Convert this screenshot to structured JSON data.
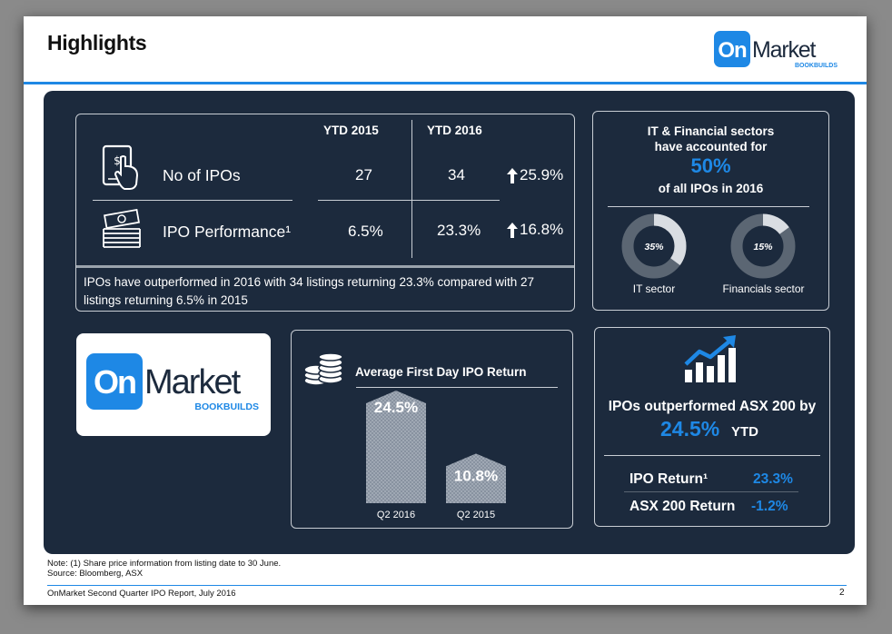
{
  "title": "Highlights",
  "logo": {
    "on": "On",
    "market": "Market",
    "sub": "BOOKBUILDS"
  },
  "stats": {
    "col1": "YTD 2015",
    "col2": "YTD 2016",
    "rows": [
      {
        "label": "No of IPOs",
        "v2015": "27",
        "v2016": "34",
        "change": "25.9%"
      },
      {
        "label": "IPO Performance¹",
        "v2015": "6.5%",
        "v2016": "23.3%",
        "change": "16.8%"
      }
    ],
    "note": "IPOs have outperformed in 2016 with 34 listings returning 23.3% compared with 27 listings returning 6.5% in 2015"
  },
  "sectors": {
    "line1": "IT &  Financial sectors",
    "line2": "have accounted for",
    "big": "50%",
    "line3": "of all IPOs in 2016",
    "items": [
      {
        "label": "IT sector",
        "value": 35,
        "value_label": "35%"
      },
      {
        "label": "Financials sector",
        "value": 15,
        "value_label": "15%"
      }
    ]
  },
  "chart_data": {
    "type": "bar",
    "title": "Average First Day IPO Return",
    "categories": [
      "Q2 2016",
      "Q2 2015"
    ],
    "values": [
      24.5,
      10.8
    ],
    "data_labels": [
      "24.5%",
      "10.8%"
    ]
  },
  "asx": {
    "headline": "IPOs outperformed ASX 200 by",
    "big": "24.5%",
    "ytd": "YTD",
    "rows": [
      {
        "label": "IPO Return¹",
        "value": "23.3%"
      },
      {
        "label": "ASX 200 Return",
        "value": "-1.2%"
      }
    ]
  },
  "notes": {
    "note1": "Note: (1) Share price information from listing date to 30 June.",
    "source": "Source: Bloomberg, ASX"
  },
  "footer": {
    "text": "OnMarket Second Quarter IPO Report, July 2016",
    "page": "2"
  },
  "colors": {
    "accent": "#1e88e5",
    "panel": "#1c2a3d",
    "donut_track": "#5b6673",
    "donut_fill": "#d9dde2"
  }
}
